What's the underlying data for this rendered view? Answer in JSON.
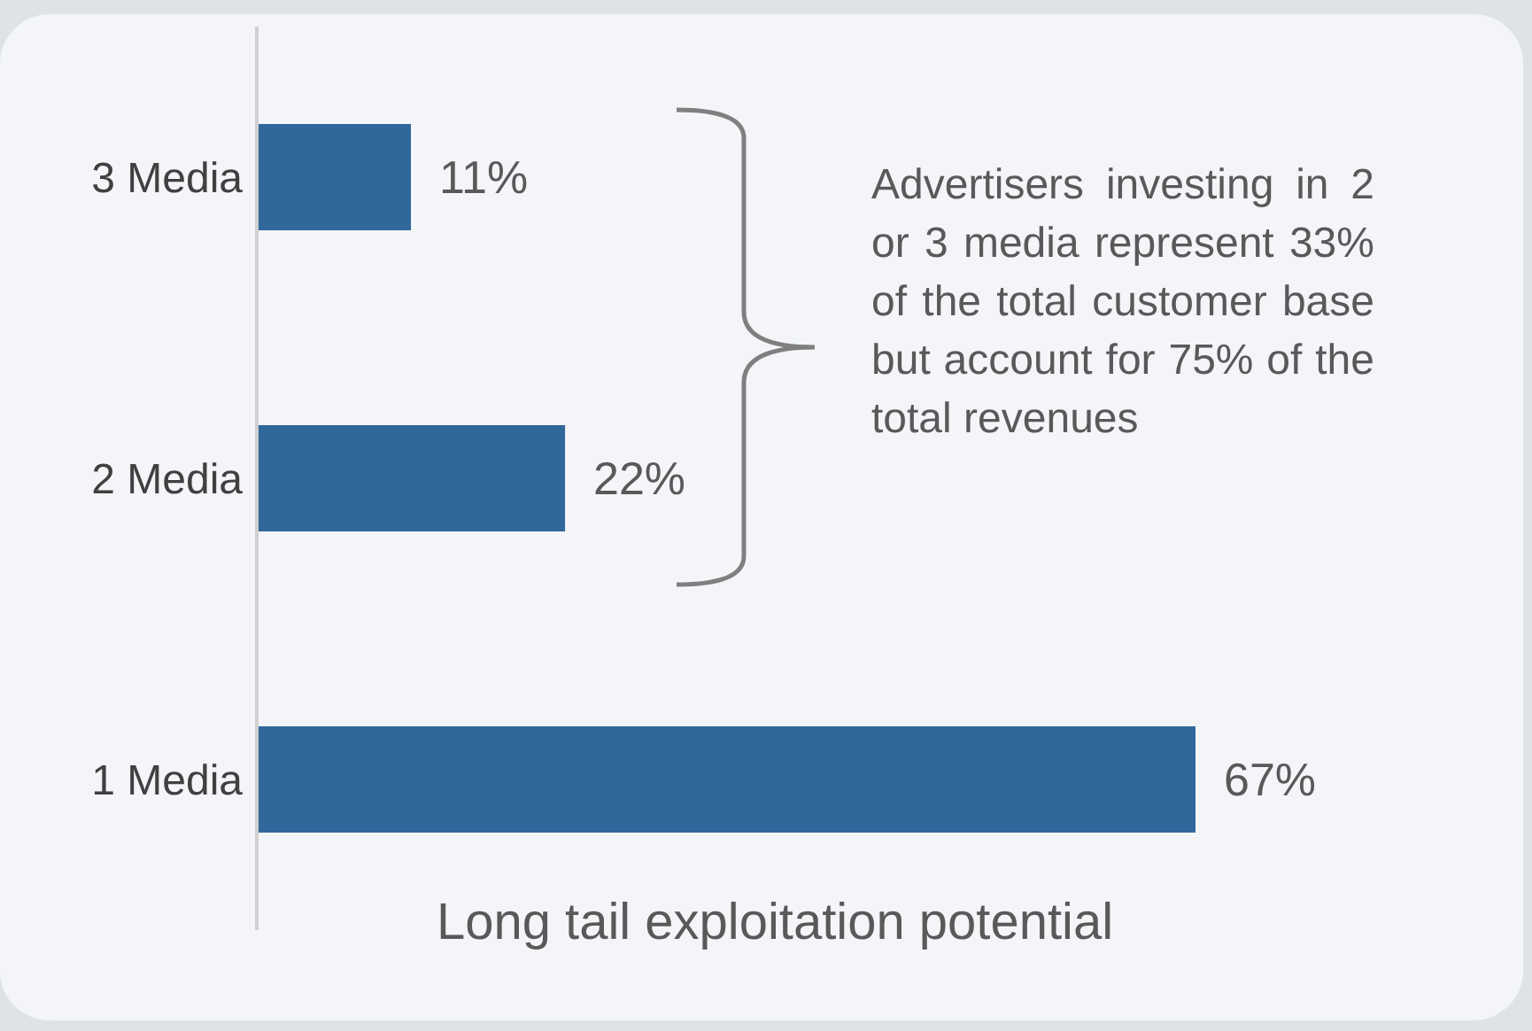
{
  "chart_data": {
    "type": "bar",
    "orientation": "horizontal",
    "categories": [
      "3 Media",
      "2 Media",
      "1 Media"
    ],
    "values": [
      11,
      22,
      67
    ],
    "color": "#31679a",
    "value_labels": [
      "11%",
      "22%",
      "67%"
    ],
    "xlabel": "Long tail exploitation potential",
    "annotations": [
      "Advertisers investing in 2 or 3 media represent 33% of the total customer base but account for 75% of the total revenues"
    ]
  }
}
